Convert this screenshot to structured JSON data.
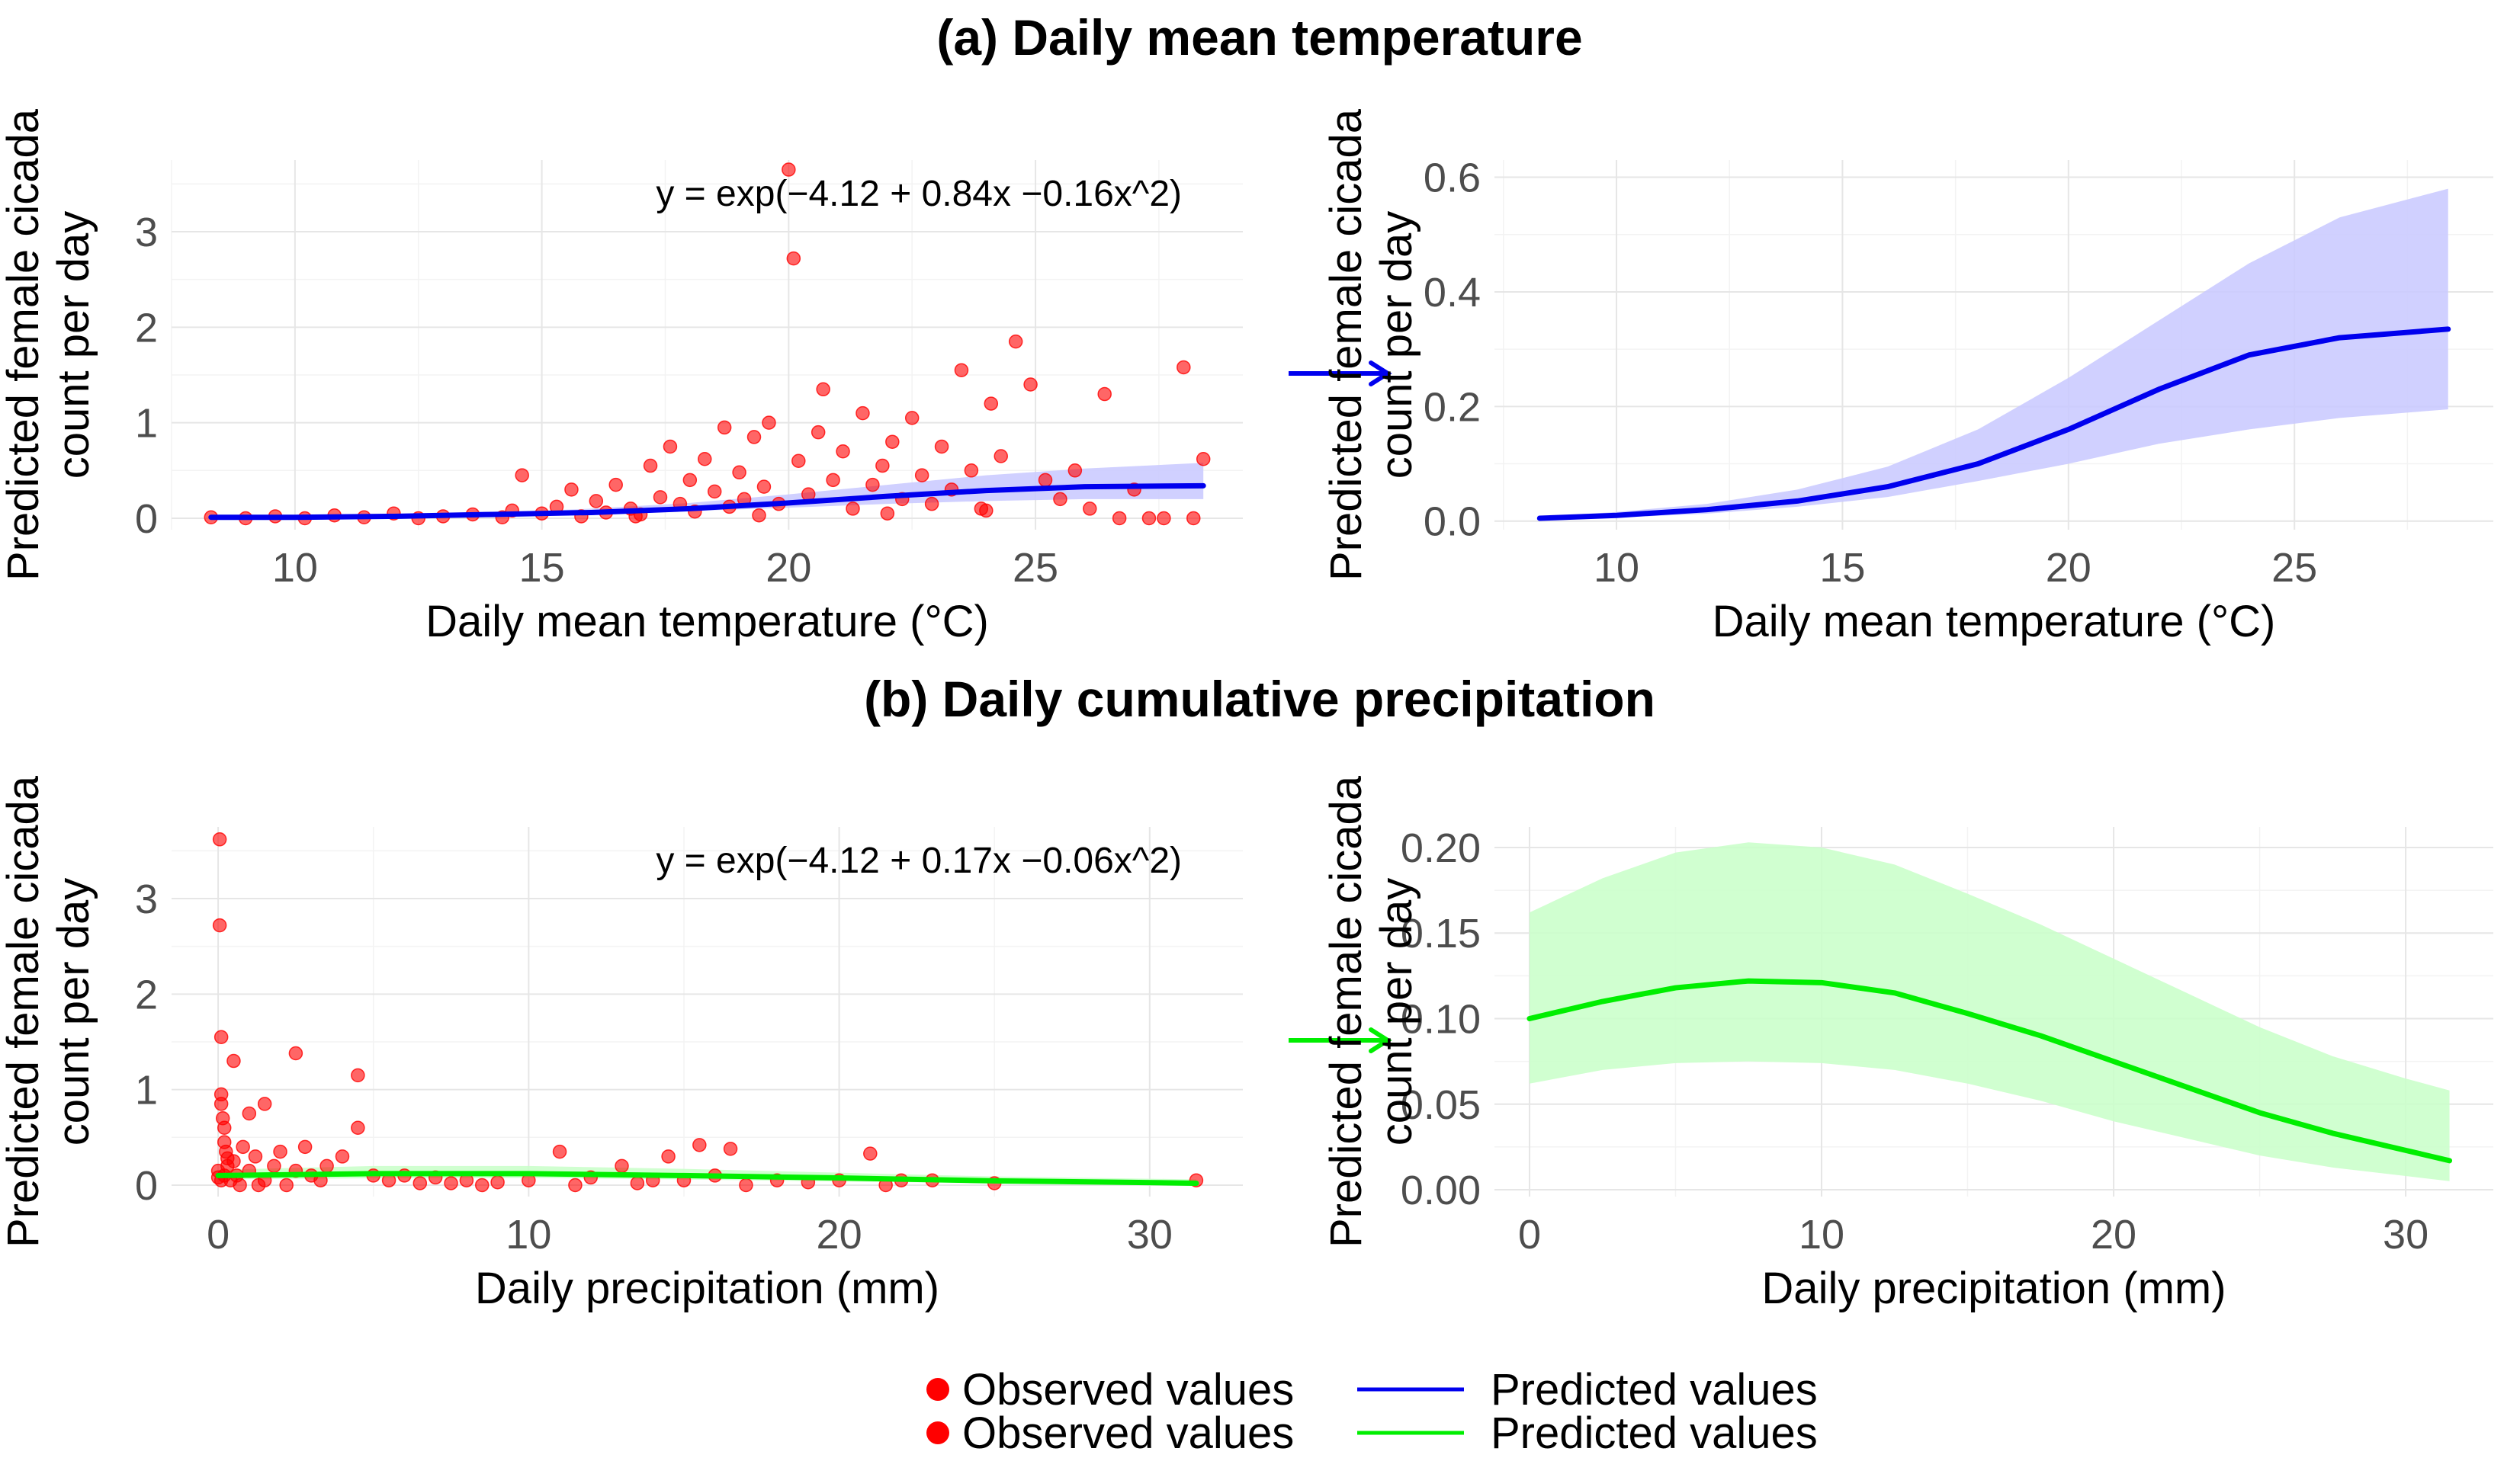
{
  "sections": {
    "a": {
      "title": "(a) Daily mean temperature"
    },
    "b": {
      "title": "(b) Daily cumulative precipitation"
    }
  },
  "chart_data": [
    {
      "id": "temp_scatter",
      "type": "scatter",
      "xlabel": "Daily mean temperature (°C)",
      "ylabel": [
        "Predicted female cicada",
        "count per day"
      ],
      "xlim": [
        7.5,
        29.2
      ],
      "ylim": [
        -0.12,
        3.75
      ],
      "xticks": [
        10,
        15,
        20,
        25
      ],
      "yticks": [
        0,
        1,
        2,
        3
      ],
      "equation": "y = exp(−4.12 + 0.84x −0.16x^2)",
      "colors": {
        "points": "#ff0000",
        "line": "#0000ee",
        "band": "#c8c8ff",
        "arrow": "#0000ee"
      },
      "points": [
        [
          8.3,
          0.01
        ],
        [
          9.0,
          0.0
        ],
        [
          9.6,
          0.02
        ],
        [
          10.2,
          0.0
        ],
        [
          10.8,
          0.03
        ],
        [
          11.4,
          0.01
        ],
        [
          12.0,
          0.05
        ],
        [
          12.5,
          0.0
        ],
        [
          13.0,
          0.02
        ],
        [
          13.6,
          0.04
        ],
        [
          14.2,
          0.01
        ],
        [
          14.4,
          0.08
        ],
        [
          14.6,
          0.45
        ],
        [
          15.0,
          0.05
        ],
        [
          15.3,
          0.12
        ],
        [
          15.6,
          0.3
        ],
        [
          15.8,
          0.02
        ],
        [
          16.1,
          0.18
        ],
        [
          16.3,
          0.06
        ],
        [
          16.5,
          0.35
        ],
        [
          16.8,
          0.1
        ],
        [
          17.0,
          0.04
        ],
        [
          17.2,
          0.55
        ],
        [
          17.4,
          0.22
        ],
        [
          17.6,
          0.75
        ],
        [
          17.8,
          0.15
        ],
        [
          18.0,
          0.4
        ],
        [
          18.1,
          0.07
        ],
        [
          18.3,
          0.62
        ],
        [
          18.5,
          0.28
        ],
        [
          18.7,
          0.95
        ],
        [
          18.8,
          0.12
        ],
        [
          19.0,
          0.48
        ],
        [
          19.1,
          0.2
        ],
        [
          19.3,
          0.85
        ],
        [
          19.5,
          0.33
        ],
        [
          19.6,
          1.0
        ],
        [
          19.8,
          0.15
        ],
        [
          20.0,
          3.65
        ],
        [
          20.1,
          2.72
        ],
        [
          20.2,
          0.6
        ],
        [
          20.4,
          0.25
        ],
        [
          20.6,
          0.9
        ],
        [
          20.7,
          1.35
        ],
        [
          20.9,
          0.4
        ],
        [
          21.1,
          0.7
        ],
        [
          21.3,
          0.1
        ],
        [
          21.5,
          1.1
        ],
        [
          21.7,
          0.35
        ],
        [
          21.9,
          0.55
        ],
        [
          22.1,
          0.8
        ],
        [
          22.3,
          0.2
        ],
        [
          22.5,
          1.05
        ],
        [
          22.7,
          0.45
        ],
        [
          22.9,
          0.15
        ],
        [
          23.1,
          0.75
        ],
        [
          23.3,
          0.3
        ],
        [
          23.5,
          1.55
        ],
        [
          23.7,
          0.5
        ],
        [
          23.9,
          0.1
        ],
        [
          24.1,
          1.2
        ],
        [
          24.3,
          0.65
        ],
        [
          24.6,
          1.85
        ],
        [
          24.9,
          1.4
        ],
        [
          25.2,
          0.4
        ],
        [
          25.5,
          0.2
        ],
        [
          25.8,
          0.5
        ],
        [
          26.1,
          0.1
        ],
        [
          26.4,
          1.3
        ],
        [
          26.7,
          0.0
        ],
        [
          27.0,
          0.3
        ],
        [
          27.3,
          0.0
        ],
        [
          27.6,
          0.0
        ],
        [
          28.0,
          1.58
        ],
        [
          28.4,
          0.62
        ],
        [
          28.2,
          0.0
        ],
        [
          22.0,
          0.05
        ],
        [
          24.0,
          0.08
        ],
        [
          19.4,
          0.03
        ],
        [
          16.9,
          0.02
        ]
      ],
      "line": {
        "x": [
          8.3,
          10,
          12,
          14,
          16,
          18,
          20,
          22,
          24,
          26,
          28.4
        ],
        "y": [
          0.01,
          0.01,
          0.02,
          0.04,
          0.06,
          0.1,
          0.16,
          0.23,
          0.29,
          0.33,
          0.34
        ]
      },
      "band": {
        "x": [
          8.3,
          10,
          12,
          14,
          16,
          18,
          20,
          22,
          24,
          26,
          28.4
        ],
        "lower": [
          0.005,
          0.007,
          0.014,
          0.028,
          0.045,
          0.075,
          0.11,
          0.15,
          0.18,
          0.2,
          0.2
        ],
        "upper": [
          0.015,
          0.02,
          0.03,
          0.06,
          0.1,
          0.16,
          0.25,
          0.35,
          0.45,
          0.52,
          0.58
        ]
      }
    },
    {
      "id": "temp_zoom",
      "type": "line",
      "xlabel": "Daily mean temperature (°C)",
      "ylabel": [
        "Predicted female cicada",
        "count per day"
      ],
      "xlim": [
        7.3,
        29.4
      ],
      "ylim": [
        -0.015,
        0.63
      ],
      "xticks": [
        10,
        15,
        20,
        25
      ],
      "yticks": [
        0.0,
        0.2,
        0.4,
        0.6
      ],
      "ytick_labels": [
        "0.0",
        "0.2",
        "0.4",
        "0.6"
      ],
      "colors": {
        "line": "#0000ee",
        "band": "#c8c8ff"
      },
      "line": {
        "x": [
          8.3,
          10,
          12,
          14,
          16,
          18,
          20,
          22,
          24,
          26,
          28.4
        ],
        "y": [
          0.005,
          0.01,
          0.02,
          0.035,
          0.06,
          0.1,
          0.16,
          0.23,
          0.29,
          0.32,
          0.335
        ]
      },
      "band": {
        "x": [
          8.3,
          10,
          12,
          14,
          16,
          18,
          20,
          22,
          24,
          26,
          28.4
        ],
        "lower": [
          0.003,
          0.006,
          0.013,
          0.025,
          0.042,
          0.07,
          0.1,
          0.135,
          0.16,
          0.18,
          0.195
        ],
        "upper": [
          0.008,
          0.016,
          0.03,
          0.055,
          0.095,
          0.16,
          0.25,
          0.35,
          0.45,
          0.53,
          0.58
        ]
      }
    },
    {
      "id": "precip_scatter",
      "type": "scatter",
      "xlabel": "Daily precipitation (mm)",
      "ylabel": [
        "Predicted female cicada",
        "count per day"
      ],
      "xlim": [
        -1.5,
        33
      ],
      "ylim": [
        -0.12,
        3.75
      ],
      "xticks": [
        0,
        10,
        20,
        30
      ],
      "yticks": [
        0,
        1,
        2,
        3
      ],
      "equation": "y = exp(−4.12 + 0.17x −0.06x^2)",
      "colors": {
        "points": "#ff0000",
        "line": "#00ee00",
        "band": "#c8ffc8",
        "arrow": "#00ee00"
      },
      "points": [
        [
          0.05,
          3.62
        ],
        [
          0.05,
          2.72
        ],
        [
          0.1,
          1.55
        ],
        [
          0.1,
          0.95
        ],
        [
          0.1,
          0.85
        ],
        [
          0.15,
          0.7
        ],
        [
          0.2,
          0.6
        ],
        [
          0.2,
          0.45
        ],
        [
          0.25,
          0.35
        ],
        [
          0.3,
          0.28
        ],
        [
          0.0,
          0.15
        ],
        [
          0.0,
          0.08
        ],
        [
          0.1,
          0.05
        ],
        [
          0.2,
          0.1
        ],
        [
          0.3,
          0.2
        ],
        [
          0.4,
          0.05
        ],
        [
          0.5,
          1.3
        ],
        [
          0.5,
          0.25
        ],
        [
          0.6,
          0.1
        ],
        [
          0.8,
          0.4
        ],
        [
          1.0,
          0.75
        ],
        [
          1.0,
          0.15
        ],
        [
          1.2,
          0.3
        ],
        [
          1.5,
          0.85
        ],
        [
          1.5,
          0.05
        ],
        [
          1.8,
          0.2
        ],
        [
          2.0,
          0.35
        ],
        [
          2.5,
          1.38
        ],
        [
          2.5,
          0.15
        ],
        [
          2.8,
          0.4
        ],
        [
          3.0,
          0.1
        ],
        [
          3.5,
          0.2
        ],
        [
          4.0,
          0.3
        ],
        [
          4.5,
          1.15
        ],
        [
          4.5,
          0.6
        ],
        [
          5.0,
          0.1
        ],
        [
          5.5,
          0.05
        ],
        [
          6.0,
          0.1
        ],
        [
          6.5,
          0.02
        ],
        [
          7.0,
          0.08
        ],
        [
          7.5,
          0.02
        ],
        [
          8.0,
          0.05
        ],
        [
          8.5,
          0.0
        ],
        [
          9.0,
          0.03
        ],
        [
          10.0,
          0.05
        ],
        [
          11.0,
          0.35
        ],
        [
          11.5,
          0.0
        ],
        [
          12.0,
          0.08
        ],
        [
          13.0,
          0.2
        ],
        [
          13.5,
          0.02
        ],
        [
          14.0,
          0.05
        ],
        [
          14.5,
          0.3
        ],
        [
          15.0,
          0.05
        ],
        [
          15.5,
          0.42
        ],
        [
          16.0,
          0.1
        ],
        [
          16.5,
          0.38
        ],
        [
          17.0,
          0.0
        ],
        [
          18.0,
          0.05
        ],
        [
          19.0,
          0.03
        ],
        [
          20.0,
          0.05
        ],
        [
          21.0,
          0.33
        ],
        [
          21.5,
          0.0
        ],
        [
          22.0,
          0.05
        ],
        [
          23.0,
          0.05
        ],
        [
          25.0,
          0.02
        ],
        [
          31.5,
          0.05
        ],
        [
          0.7,
          0.0
        ],
        [
          1.3,
          0.0
        ],
        [
          2.2,
          0.0
        ],
        [
          3.3,
          0.05
        ]
      ],
      "line": {
        "x": [
          0,
          5,
          10,
          15,
          20,
          25,
          31.5
        ],
        "y": [
          0.1,
          0.12,
          0.12,
          0.1,
          0.075,
          0.045,
          0.02
        ]
      },
      "band": {
        "x": [
          0,
          5,
          10,
          15,
          20,
          25,
          31.5
        ],
        "lower": [
          0.06,
          0.072,
          0.074,
          0.06,
          0.038,
          0.02,
          0.005
        ],
        "upper": [
          0.16,
          0.2,
          0.2,
          0.17,
          0.13,
          0.09,
          0.06
        ]
      }
    },
    {
      "id": "precip_zoom",
      "type": "line",
      "xlabel": "Daily precipitation (mm)",
      "ylabel": [
        "Predicted female cicada",
        "count per day"
      ],
      "xlim": [
        -1.2,
        33
      ],
      "ylim": [
        -0.004,
        0.212
      ],
      "xticks": [
        0,
        10,
        20,
        30
      ],
      "yticks": [
        0.0,
        0.05,
        0.1,
        0.15,
        0.2
      ],
      "ytick_labels": [
        "0.00",
        "0.05",
        "0.10",
        "0.15",
        "0.20"
      ],
      "colors": {
        "line": "#00ee00",
        "band": "#c8ffc8"
      },
      "line": {
        "x": [
          0,
          2.5,
          5,
          7.5,
          10,
          12.5,
          15,
          17.5,
          20,
          22.5,
          25,
          27.5,
          30,
          31.5
        ],
        "y": [
          0.1,
          0.11,
          0.118,
          0.122,
          0.121,
          0.115,
          0.103,
          0.09,
          0.075,
          0.06,
          0.045,
          0.033,
          0.023,
          0.017
        ]
      },
      "band": {
        "x": [
          0,
          2.5,
          5,
          7.5,
          10,
          12.5,
          15,
          17.5,
          20,
          22.5,
          25,
          27.5,
          30,
          31.5
        ],
        "lower": [
          0.062,
          0.07,
          0.074,
          0.075,
          0.074,
          0.07,
          0.062,
          0.052,
          0.04,
          0.03,
          0.02,
          0.013,
          0.008,
          0.005
        ],
        "upper": [
          0.162,
          0.182,
          0.197,
          0.203,
          0.2,
          0.19,
          0.173,
          0.155,
          0.135,
          0.115,
          0.095,
          0.078,
          0.065,
          0.058
        ]
      }
    }
  ],
  "legend": {
    "items": [
      {
        "label": "Observed values",
        "kind": "point",
        "color": "#ff0000"
      },
      {
        "label": "Predicted values",
        "kind": "line",
        "color": "#0000ee"
      },
      {
        "label": "Observed values",
        "kind": "point",
        "color": "#ff0000"
      },
      {
        "label": "Predicted values",
        "kind": "line",
        "color": "#00ee00"
      }
    ]
  }
}
